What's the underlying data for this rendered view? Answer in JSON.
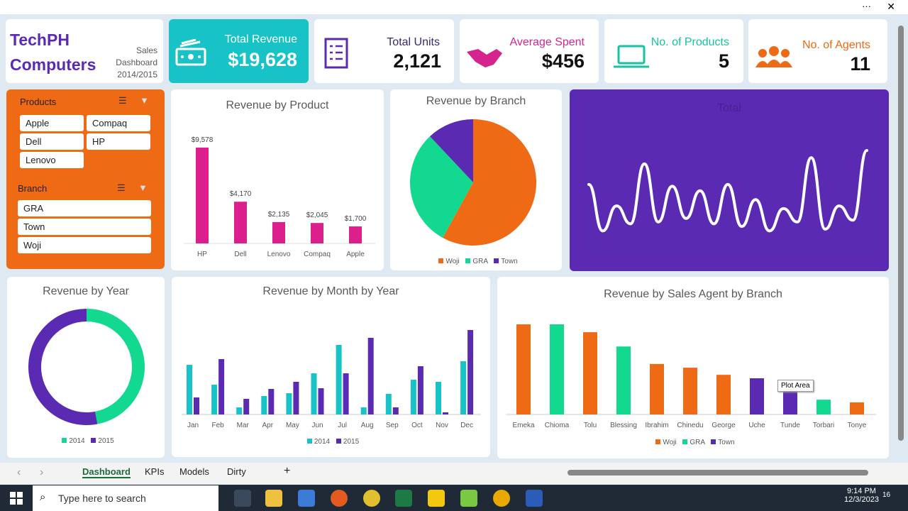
{
  "window": {
    "more_label": "···",
    "close_label": "✕"
  },
  "brand": {
    "line1": "TechPH",
    "line2": "Computers",
    "sub1": "Sales",
    "sub2": "Dashboard",
    "sub3": "2014/2015"
  },
  "kpis": [
    {
      "title": "Total Revenue",
      "value": "$19,628",
      "icon": "money-icon",
      "color": "#17c3c6"
    },
    {
      "title": "Total Units",
      "value": "2,121",
      "icon": "checklist-icon",
      "color": "#5b2ab3"
    },
    {
      "title": "Average Spent",
      "value": "$456",
      "icon": "handshake-icon",
      "color": "#d6248f"
    },
    {
      "title": "No. of Products",
      "value": "5",
      "icon": "laptop-icon",
      "color": "#17c3a0"
    },
    {
      "title": "No. of Agents",
      "value": "11",
      "icon": "people-icon",
      "color": "#ee6a15"
    }
  ],
  "slicers": {
    "products": {
      "title": "Products",
      "items": [
        "Apple",
        "Compaq",
        "Dell",
        "HP",
        "Lenovo"
      ]
    },
    "branch": {
      "title": "Branch",
      "items": [
        "GRA",
        "Town",
        "Woji"
      ]
    }
  },
  "colors": {
    "orange": "#ee6a15",
    "green": "#13d990",
    "purple": "#5b2ab3",
    "teal": "#17c3c6",
    "pink": "#db1f8c"
  },
  "chart_data": [
    {
      "type": "bar",
      "title": "Revenue by Product",
      "categories": [
        "HP",
        "Dell",
        "Lenovo",
        "Compaq",
        "Apple"
      ],
      "values": [
        9578,
        4170,
        2135,
        2045,
        1700
      ],
      "data_labels": [
        "$9,578",
        "$4,170",
        "$2,135",
        "$2,045",
        "$1,700"
      ]
    },
    {
      "type": "pie",
      "title": "Revenue by Branch",
      "categories": [
        "Woji",
        "GRA",
        "Town"
      ],
      "values": [
        58,
        30,
        12
      ],
      "legend": "bottom"
    },
    {
      "type": "line",
      "title": "Total",
      "values": [
        62,
        10,
        38,
        18,
        85,
        20,
        60,
        24,
        55,
        18,
        62,
        15,
        45,
        10,
        35,
        20,
        92,
        12,
        38,
        22,
        100
      ]
    },
    {
      "type": "pie",
      "title": "Revenue by Year",
      "categories": [
        "2014",
        "2015"
      ],
      "values": [
        47,
        53
      ],
      "legend": "bottom",
      "donut": true
    },
    {
      "type": "bar",
      "title": "Revenue by Month by Year",
      "categories": [
        "Jan",
        "Feb",
        "Mar",
        "Apr",
        "May",
        "Jun",
        "Jul",
        "Aug",
        "Sep",
        "Oct",
        "Nov",
        "Dec"
      ],
      "series": [
        {
          "name": "2014",
          "values": [
            1190,
            714,
            170,
            442,
            510,
            986,
            1666,
            170,
            493,
            833,
            782,
            1275
          ]
        },
        {
          "name": "2015",
          "values": [
            408,
            1326,
            374,
            612,
            782,
            629,
            986,
            1836,
            170,
            1156,
            51,
            2023
          ]
        }
      ],
      "legend": "bottom"
    },
    {
      "type": "bar",
      "title": "Revenue by Sales Agent by Branch",
      "categories": [
        "Emeka",
        "Chioma",
        "Tolu",
        "Blessing",
        "Ibrahim",
        "Chinedu",
        "George",
        "Uche",
        "Tunde",
        "Torbari",
        "Tonye"
      ],
      "values": [
        3660,
        3660,
        3340,
        2760,
        2050,
        1900,
        1610,
        1470,
        980,
        600,
        490
      ],
      "branch": [
        "Woji",
        "GRA",
        "Woji",
        "GRA",
        "Woji",
        "Woji",
        "Woji",
        "Town",
        "Town",
        "GRA",
        "Woji"
      ],
      "legend_labels": [
        "Woji",
        "GRA",
        "Town"
      ],
      "tooltip": "Plot Area"
    }
  ],
  "sheets": {
    "tabs": [
      "Dashboard",
      "KPIs",
      "Models",
      "Dirty"
    ],
    "add": "+"
  },
  "taskbar": {
    "search_placeholder": "Type here to search",
    "time": "9:14 PM",
    "date": "12/3/2023",
    "notif": "16"
  }
}
